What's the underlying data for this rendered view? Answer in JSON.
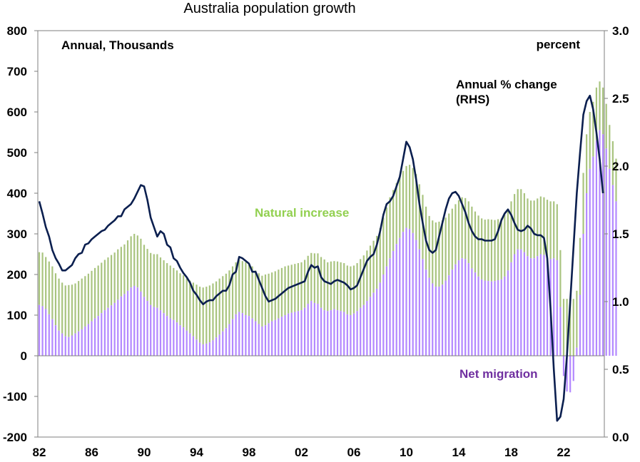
{
  "chart_data": {
    "type": "bar",
    "title": "Australia population growth",
    "left_axis_label": "Annual, Thousands",
    "right_axis_label": "percent",
    "ylim_left": [
      -200,
      800
    ],
    "ylim_right": [
      0.0,
      3.0
    ],
    "left_ticks": [
      "800",
      "700",
      "600",
      "500",
      "400",
      "300",
      "200",
      "100",
      "0",
      "-100",
      "-200"
    ],
    "left_tick_values": [
      800,
      700,
      600,
      500,
      400,
      300,
      200,
      100,
      0,
      -100,
      -200
    ],
    "right_ticks": [
      "3.0",
      "2.5",
      "2.0",
      "1.5",
      "1.0",
      "0.5",
      "0.0"
    ],
    "right_tick_values": [
      3.0,
      2.5,
      2.0,
      1.5,
      1.0,
      0.5,
      0.0
    ],
    "x_ticks": [
      "82",
      "86",
      "90",
      "94",
      "98",
      "02",
      "06",
      "10",
      "14",
      "18",
      "22"
    ],
    "x_tick_years": [
      1982,
      1986,
      1990,
      1994,
      1998,
      2002,
      2006,
      2010,
      2014,
      2018,
      2022
    ],
    "x_start_year": 1982.0,
    "x_step_years": 0.25,
    "grid": false,
    "annotations": {
      "natural_increase": "Natural increase",
      "net_migration": "Net migration",
      "annual_change_line1": "Annual % change",
      "annual_change_line2": "(RHS)"
    },
    "colors": {
      "natural_increase": "#a9c47f",
      "net_migration": "#b388ff",
      "annual_change": "#0b1f4f",
      "label_green": "#92d050",
      "label_purple": "#7030a0"
    },
    "series": [
      {
        "name": "Net migration",
        "axis": "left",
        "units": "thousands",
        "values": [
          125,
          122,
          115,
          102,
          90,
          75,
          62,
          55,
          48,
          46,
          50,
          55,
          60,
          65,
          72,
          78,
          85,
          92,
          98,
          105,
          112,
          118,
          124,
          130,
          138,
          146,
          152,
          160,
          168,
          172,
          168,
          158,
          145,
          135,
          125,
          120,
          118,
          112,
          105,
          98,
          92,
          88,
          82,
          75,
          70,
          62,
          55,
          48,
          40,
          32,
          28,
          30,
          33,
          38,
          45,
          52,
          60,
          68,
          78,
          90,
          102,
          108,
          105,
          100,
          98,
          92,
          85,
          78,
          72,
          75,
          80,
          85,
          88,
          92,
          96,
          100,
          104,
          106,
          108,
          110,
          112,
          118,
          128,
          135,
          130,
          128,
          118,
          112,
          110,
          112,
          115,
          112,
          110,
          108,
          102,
          100,
          104,
          110,
          118,
          125,
          135,
          145,
          155,
          165,
          180,
          200,
          220,
          240,
          258,
          275,
          290,
          305,
          315,
          312,
          302,
          285,
          262,
          238,
          212,
          192,
          178,
          170,
          170,
          175,
          185,
          198,
          212,
          225,
          235,
          240,
          238,
          228,
          215,
          205,
          195,
          188,
          185,
          184,
          183,
          184,
          186,
          188,
          195,
          210,
          230,
          250,
          262,
          262,
          255,
          245,
          240,
          240,
          245,
          250,
          248,
          242,
          238,
          240,
          235,
          120,
          -50,
          -88,
          -90,
          -62,
          20,
          150,
          300,
          400,
          460,
          490,
          530,
          555,
          545,
          510,
          460,
          420,
          380
        ]
      },
      {
        "name": "Natural increase",
        "axis": "left",
        "units": "thousands",
        "values": [
          130,
          132,
          128,
          130,
          130,
          128,
          128,
          125,
          125,
          128,
          125,
          123,
          124,
          125,
          124,
          124,
          124,
          124,
          124,
          124,
          124,
          124,
          124,
          124,
          124,
          122,
          122,
          124,
          126,
          128,
          128,
          130,
          128,
          128,
          128,
          130,
          132,
          130,
          130,
          130,
          130,
          128,
          128,
          128,
          128,
          128,
          130,
          132,
          135,
          138,
          140,
          140,
          140,
          140,
          138,
          138,
          136,
          134,
          132,
          130,
          128,
          128,
          128,
          130,
          128,
          128,
          125,
          125,
          125,
          125,
          122,
          120,
          120,
          120,
          120,
          120,
          118,
          118,
          118,
          118,
          118,
          118,
          118,
          118,
          122,
          124,
          125,
          125,
          120,
          120,
          118,
          120,
          120,
          120,
          120,
          120,
          118,
          118,
          120,
          122,
          124,
          126,
          128,
          130,
          134,
          140,
          145,
          150,
          150,
          150,
          150,
          150,
          152,
          158,
          160,
          162,
          160,
          158,
          155,
          152,
          155,
          158,
          160,
          158,
          155,
          152,
          150,
          148,
          148,
          150,
          150,
          152,
          152,
          150,
          150,
          150,
          150,
          152,
          152,
          150,
          150,
          150,
          152,
          150,
          150,
          148,
          148,
          148,
          145,
          142,
          142,
          142,
          142,
          142,
          142,
          142,
          142,
          140,
          138,
          140,
          140,
          140,
          140,
          140,
          140,
          140,
          150,
          145,
          140,
          135,
          130,
          120,
          115,
          110,
          108,
          108,
          105,
          105,
          100
        ]
      },
      {
        "name": "Annual % change (RHS)",
        "axis": "right",
        "units": "percent",
        "values": [
          1.74,
          1.65,
          1.55,
          1.48,
          1.38,
          1.32,
          1.28,
          1.23,
          1.23,
          1.25,
          1.27,
          1.32,
          1.35,
          1.36,
          1.42,
          1.43,
          1.46,
          1.48,
          1.5,
          1.52,
          1.53,
          1.56,
          1.58,
          1.6,
          1.63,
          1.63,
          1.68,
          1.7,
          1.72,
          1.76,
          1.81,
          1.86,
          1.85,
          1.75,
          1.62,
          1.55,
          1.48,
          1.52,
          1.5,
          1.42,
          1.4,
          1.32,
          1.3,
          1.25,
          1.21,
          1.18,
          1.14,
          1.08,
          1.05,
          1.01,
          0.98,
          1.0,
          1.01,
          1.01,
          1.04,
          1.06,
          1.08,
          1.08,
          1.12,
          1.2,
          1.22,
          1.33,
          1.32,
          1.3,
          1.28,
          1.22,
          1.22,
          1.16,
          1.1,
          1.04,
          1.0,
          1.01,
          1.02,
          1.04,
          1.06,
          1.08,
          1.1,
          1.11,
          1.12,
          1.13,
          1.14,
          1.15,
          1.22,
          1.27,
          1.25,
          1.26,
          1.18,
          1.15,
          1.14,
          1.13,
          1.15,
          1.16,
          1.15,
          1.14,
          1.12,
          1.09,
          1.1,
          1.12,
          1.18,
          1.24,
          1.3,
          1.33,
          1.35,
          1.42,
          1.52,
          1.64,
          1.72,
          1.74,
          1.78,
          1.85,
          1.92,
          2.05,
          2.18,
          2.14,
          2.05,
          1.9,
          1.72,
          1.58,
          1.45,
          1.38,
          1.36,
          1.38,
          1.48,
          1.58,
          1.68,
          1.76,
          1.8,
          1.81,
          1.78,
          1.72,
          1.66,
          1.58,
          1.52,
          1.48,
          1.46,
          1.46,
          1.45,
          1.45,
          1.45,
          1.46,
          1.52,
          1.6,
          1.65,
          1.68,
          1.64,
          1.58,
          1.53,
          1.52,
          1.53,
          1.56,
          1.54,
          1.5,
          1.49,
          1.49,
          1.47,
          1.32,
          0.95,
          0.5,
          0.12,
          0.15,
          0.28,
          0.6,
          1.0,
          1.4,
          1.8,
          2.1,
          2.38,
          2.48,
          2.52,
          2.42,
          2.25,
          2.05,
          1.8
        ]
      }
    ]
  }
}
